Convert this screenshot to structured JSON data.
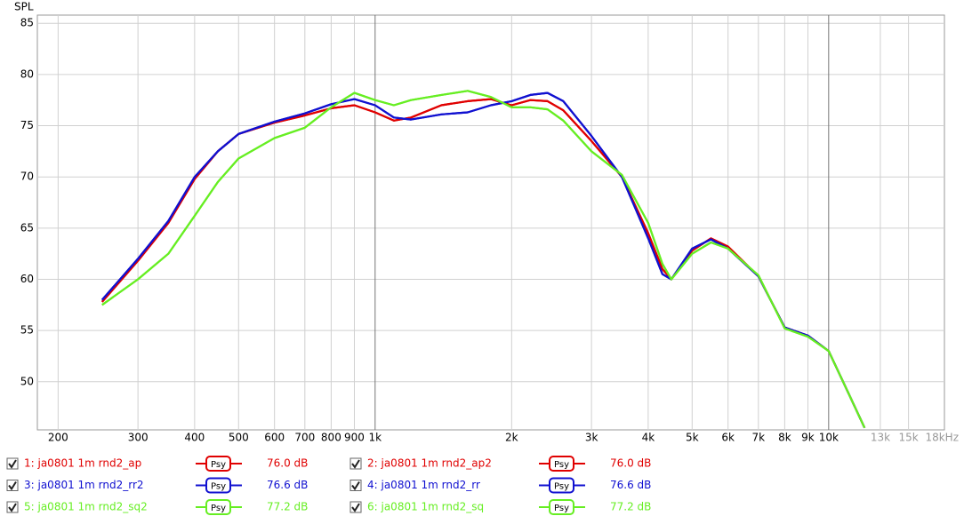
{
  "chart_data": {
    "type": "line",
    "y_label": "SPL",
    "xscale": "log",
    "grid": true,
    "xlim": [
      180,
      18000
    ],
    "ylim": [
      45.3,
      85.8
    ],
    "yticks": [
      50,
      55,
      60,
      65,
      70,
      75,
      80,
      85
    ],
    "xticks": [
      200,
      300,
      400,
      500,
      600,
      700,
      800,
      900,
      {
        "value": 1000,
        "label": "1k"
      },
      {
        "value": 2000,
        "label": "2k"
      },
      {
        "value": 3000,
        "label": "3k"
      },
      {
        "value": 4000,
        "label": "4k"
      },
      {
        "value": 5000,
        "label": "5k"
      },
      {
        "value": 6000,
        "label": "6k"
      },
      {
        "value": 7000,
        "label": "7k"
      },
      {
        "value": 8000,
        "label": "8k"
      },
      {
        "value": 9000,
        "label": "9k"
      },
      {
        "value": 10000,
        "label": "10k"
      },
      {
        "value": 13000,
        "label": "13k"
      },
      {
        "value": 15000,
        "label": "15k"
      },
      {
        "value": 18000,
        "label": "18kHz"
      }
    ],
    "x": [
      250,
      300,
      350,
      400,
      450,
      500,
      600,
      700,
      800,
      900,
      1000,
      1100,
      1200,
      1400,
      1600,
      1800,
      2000,
      2200,
      2400,
      2600,
      3000,
      3500,
      4000,
      4300,
      4500,
      5000,
      5500,
      6000,
      7000,
      8000,
      9000,
      10000,
      11000,
      12000
    ],
    "series": [
      {
        "name": "1: ja0801 1m rnd2_ap",
        "smoothing": "Psy",
        "level_label": "76.0 dB",
        "color": "#e00000",
        "values": [
          57.8,
          61.8,
          65.5,
          69.8,
          72.5,
          74.2,
          75.3,
          76.0,
          76.7,
          77.0,
          76.3,
          75.5,
          75.8,
          77.0,
          77.4,
          77.6,
          77.0,
          77.5,
          77.4,
          76.5,
          73.5,
          70.0,
          64.5,
          61.0,
          60.0,
          62.8,
          64.0,
          63.2,
          60.3,
          55.3,
          54.5,
          53.0,
          49.1,
          45.5
        ]
      },
      {
        "name": "2: ja0801 1m rnd2_ap2",
        "smoothing": "Psy",
        "level_label": "76.0 dB",
        "color": "#e00000",
        "values": [
          57.8,
          61.8,
          65.5,
          69.8,
          72.5,
          74.2,
          75.3,
          76.0,
          76.7,
          77.0,
          76.3,
          75.5,
          75.8,
          77.0,
          77.4,
          77.6,
          77.0,
          77.5,
          77.4,
          76.5,
          73.5,
          70.0,
          64.5,
          61.0,
          60.0,
          62.8,
          64.0,
          63.2,
          60.3,
          55.3,
          54.5,
          53.0,
          49.1,
          45.5
        ]
      },
      {
        "name": "3: ja0801 1m rnd2_rr2",
        "smoothing": "Psy",
        "level_label": "76.6 dB",
        "color": "#1010d0",
        "values": [
          58.0,
          62.0,
          65.7,
          70.0,
          72.5,
          74.2,
          75.4,
          76.2,
          77.1,
          77.6,
          77.0,
          75.8,
          75.6,
          76.1,
          76.3,
          77.0,
          77.4,
          78.0,
          78.2,
          77.4,
          74.0,
          70.0,
          64.0,
          60.5,
          60.0,
          63.0,
          63.9,
          63.0,
          60.3,
          55.3,
          54.5,
          53.0,
          49.1,
          45.5
        ]
      },
      {
        "name": "4: ja0801 1m rnd2_rr",
        "smoothing": "Psy",
        "level_label": "76.6 dB",
        "color": "#1010d0",
        "values": [
          58.0,
          62.0,
          65.7,
          70.0,
          72.5,
          74.2,
          75.4,
          76.2,
          77.1,
          77.6,
          77.0,
          75.8,
          75.6,
          76.1,
          76.3,
          77.0,
          77.4,
          78.0,
          78.2,
          77.4,
          74.0,
          70.0,
          64.0,
          60.5,
          60.0,
          63.0,
          63.9,
          63.0,
          60.3,
          55.3,
          54.5,
          53.0,
          49.1,
          45.5
        ]
      },
      {
        "name": "5: ja0801 1m rnd2_sq2",
        "smoothing": "Psy",
        "level_label": "77.2 dB",
        "color": "#66ee22",
        "values": [
          57.5,
          60.0,
          62.5,
          66.2,
          69.5,
          71.8,
          73.8,
          74.8,
          76.8,
          78.2,
          77.5,
          77.0,
          77.5,
          78.0,
          78.4,
          77.8,
          76.8,
          76.8,
          76.6,
          75.5,
          72.5,
          70.2,
          65.5,
          61.5,
          60.0,
          62.5,
          63.6,
          63.0,
          60.4,
          55.2,
          54.4,
          53.0,
          49.1,
          45.5
        ]
      },
      {
        "name": "6: ja0801 1m rnd2_sq",
        "smoothing": "Psy",
        "level_label": "77.2 dB",
        "color": "#66ee22",
        "values": [
          57.5,
          60.0,
          62.5,
          66.2,
          69.5,
          71.8,
          73.8,
          74.8,
          76.8,
          78.2,
          77.5,
          77.0,
          77.5,
          78.0,
          78.4,
          77.8,
          76.8,
          76.8,
          76.6,
          75.5,
          72.5,
          70.2,
          65.5,
          61.5,
          60.0,
          62.5,
          63.6,
          63.0,
          60.4,
          55.2,
          54.4,
          53.0,
          49.1,
          45.5
        ]
      }
    ]
  }
}
